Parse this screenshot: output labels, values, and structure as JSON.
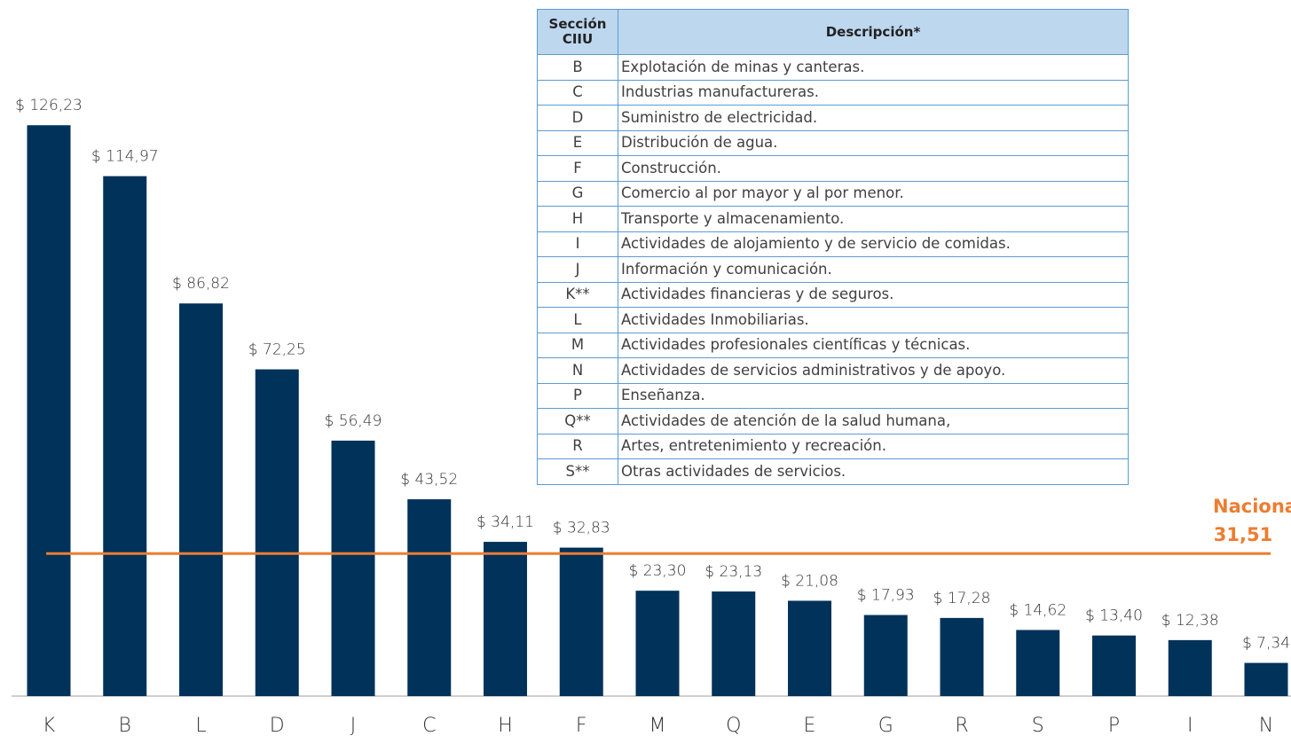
{
  "chart_data": {
    "type": "bar",
    "categories": [
      "K",
      "B",
      "L",
      "D",
      "J",
      "C",
      "H",
      "F",
      "M",
      "Q",
      "E",
      "G",
      "R",
      "S",
      "P",
      "I",
      "N"
    ],
    "values": [
      126.23,
      114.97,
      86.82,
      72.25,
      56.49,
      43.52,
      34.11,
      32.83,
      23.3,
      23.13,
      21.08,
      17.93,
      17.28,
      14.62,
      13.4,
      12.38,
      7.34
    ],
    "value_labels": [
      "$ 126,23",
      "$ 114,97",
      "$ 86,82",
      "$ 72,25",
      "$ 56,49",
      "$ 43,52",
      "$ 34,11",
      "$ 32,83",
      "$ 23,30",
      "$ 23,13",
      "$ 21,08",
      "$ 17,93",
      "$ 17,28",
      "$ 14,62",
      "$ 13,40",
      "$ 12,38",
      "$ 7,34"
    ],
    "color": "#00325a",
    "ylim": [
      0,
      130
    ],
    "reference_line": {
      "label": "Nacional",
      "value": 31.51,
      "value_label": "31,51",
      "color": "#ed7d31"
    }
  },
  "table": {
    "header": [
      "Sección CIIU",
      "Descripción*"
    ],
    "rows": [
      [
        "B",
        "Explotación de minas y canteras."
      ],
      [
        "C",
        "Industrias manufactureras."
      ],
      [
        "D",
        "Suministro de electricidad."
      ],
      [
        "E",
        "Distribución de agua."
      ],
      [
        "F",
        "Construcción."
      ],
      [
        "G",
        "Comercio al por mayor y al por menor."
      ],
      [
        "H",
        "Transporte y almacenamiento."
      ],
      [
        "I",
        "Actividades de alojamiento y de servicio de comidas."
      ],
      [
        "J",
        "Información y comunicación."
      ],
      [
        "K**",
        "Actividades financieras y de seguros."
      ],
      [
        "L",
        "Actividades Inmobiliarias."
      ],
      [
        "M",
        "Actividades profesionales científicas y técnicas."
      ],
      [
        "N",
        "Actividades de servicios administrativos y de apoyo."
      ],
      [
        "P",
        "Enseñanza."
      ],
      [
        "Q**",
        "Actividades de atención de la salud humana,"
      ],
      [
        "R",
        "Artes, entretenimiento y recreación."
      ],
      [
        "S**",
        "Otras actividades de servicios."
      ]
    ]
  }
}
